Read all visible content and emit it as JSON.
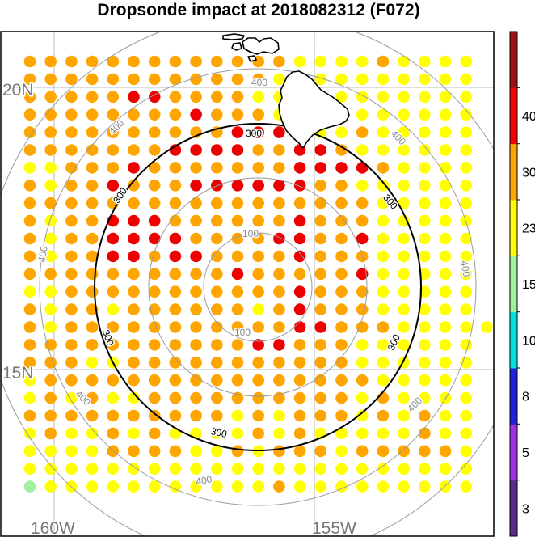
{
  "title": "Dropsonde impact at 2018082312 (F072)",
  "grid_labels": {
    "lat": [
      "20N",
      "15N"
    ],
    "lon": [
      "160W",
      "155W"
    ]
  },
  "colorbar": {
    "colors": [
      "#5c2a8c",
      "#a030e0",
      "#2020e0",
      "#00e0e0",
      "#a0f0a0",
      "#ffff00",
      "#ffa500",
      "#ff0000",
      "#a01010"
    ],
    "tick_labels": [
      "3",
      "5",
      "8",
      "10",
      "15",
      "23",
      "30",
      "40"
    ]
  },
  "range_rings": {
    "grey_labels": [
      "100",
      "100",
      "400",
      "400",
      "400",
      "400",
      "400",
      "400",
      "400",
      "400"
    ],
    "black_labels": [
      "300",
      "300",
      "300",
      "300",
      "300",
      "300"
    ]
  },
  "palette": {
    "orange": "#ffa500",
    "yellow": "#ffff00",
    "red": "#ee0000",
    "green": "#a0f0a0",
    "ring_grey": "#9a9a9a",
    "ring_black": "#000000",
    "grid_grey": "#bbbbbb"
  },
  "dots": {
    "note_legend": "o=orange y=yellow r=red g=green",
    "rows": [
      "oooooooooooooyyyyoyyyy",
      "ooooooooooooyyyyyyyyyy",
      "ooooorrooooyyyyyyyyyyy",
      "ooooooooroooyyyyyyyyyy",
      "oooooooooorrryyyoyyyyy",
      "ooooooorrrroorroyyyyyy",
      "yyooorooooooorrrroyyyy",
      "oyoorooorrrrrrooyyyyyy",
      "oooooooooooooooooyyyyy",
      "oyoorrrooooooroooyyyyy",
      "oyoorrrroooorrooryyyyy",
      "oyoorrorrooooroooyyyyy",
      "ooooooooooroooooryyyyy",
      "yyoooooooooooroooyyyyy",
      "oyooyooooooyoroooyyyyy",
      "oyooooooooooorroooyyyyy",
      "ooooooooooorroooyyyyyy",
      "oooyyoooooooooooyyyyyy",
      "yooooooooooooooooyyyyy",
      "yoyoyyooooooooooyoyyyy",
      "ooooooooooyoyoooyoyoyy",
      "yoyyoyoyyyyoyoyyyyyoyy",
      "yyyyooooyyoyoooyoooooy",
      "yyyyyyyyyyyyyyyyyyyyyy",
      "gyyyyyyyyyyyoyyyyyyyyy"
    ]
  }
}
